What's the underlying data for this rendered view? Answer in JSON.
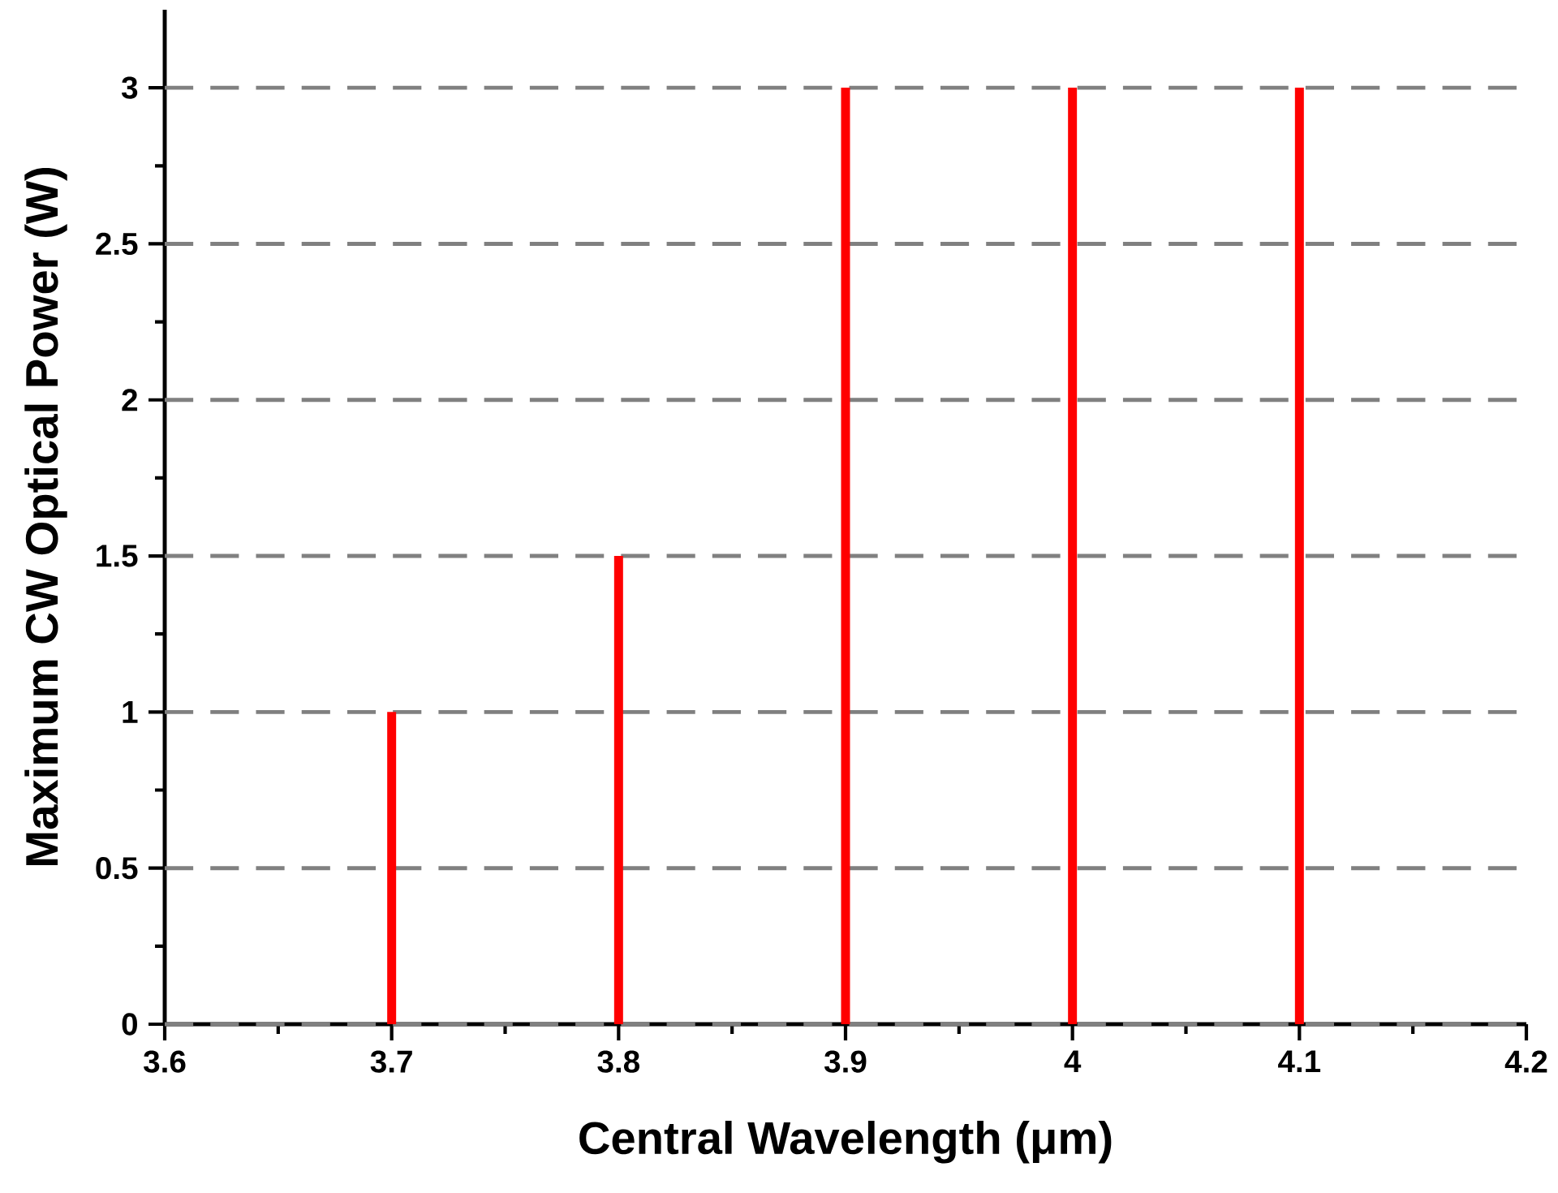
{
  "chart_data": {
    "type": "bar",
    "xlabel": "Central Wavelength (μm)",
    "ylabel": "Maximum CW Optical Power (W)",
    "x": [
      3.7,
      3.8,
      3.9,
      4.0,
      4.1
    ],
    "values": [
      1,
      1.5,
      3,
      3,
      3
    ],
    "color": "#ff0000",
    "xlim": [
      3.6,
      4.2
    ],
    "ylim": [
      0,
      3.25
    ],
    "xticks": [
      3.6,
      3.7,
      3.8,
      3.9,
      4,
      4.1,
      4.2
    ],
    "yticks": [
      0,
      0.5,
      1,
      1.5,
      2,
      2.5,
      3
    ],
    "grid": "y"
  }
}
